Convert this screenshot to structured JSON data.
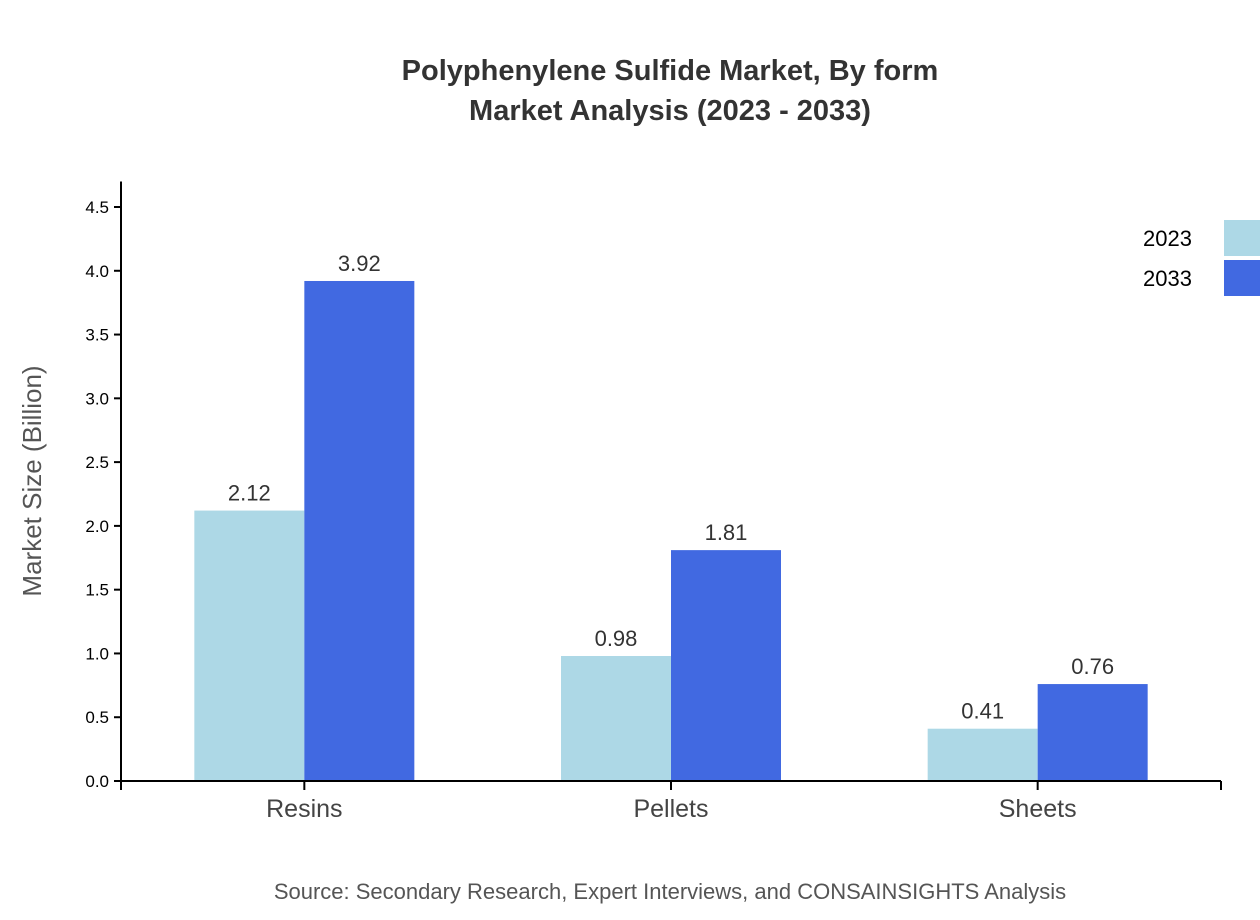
{
  "chart_data": {
    "type": "bar",
    "title": [
      "Polyphenylene Sulfide Market, By form",
      "Market Analysis (2023 - 2033)"
    ],
    "xlabel": "",
    "ylabel": "Market Size (Billion)",
    "categories": [
      "Resins",
      "Pellets",
      "Sheets"
    ],
    "series": [
      {
        "name": "2023",
        "values": [
          2.12,
          0.98,
          0.41
        ],
        "color": "#ADD8E6"
      },
      {
        "name": "2033",
        "values": [
          3.92,
          1.81,
          0.76
        ],
        "color": "#4169E1"
      }
    ],
    "ylim": [
      0,
      4.7
    ],
    "yticks": [
      "0.0",
      "0.5",
      "1.0",
      "1.5",
      "2.0",
      "2.5",
      "3.0",
      "3.5",
      "4.0",
      "4.5"
    ],
    "grid": false,
    "legend_placement": "top-right",
    "source": "Source: Secondary Research, Expert Interviews, and CONSAINSIGHTS Analysis"
  }
}
